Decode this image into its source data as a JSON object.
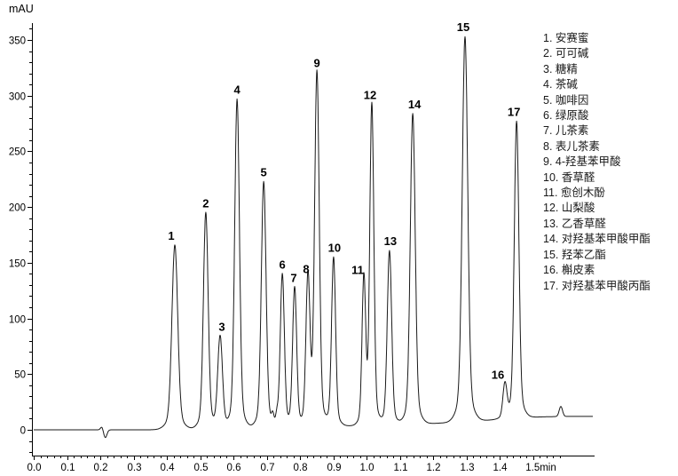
{
  "y_axis": {
    "unit_label": "mAU",
    "tick_values": [
      0,
      50,
      100,
      150,
      200,
      250,
      300,
      350
    ],
    "tick_labels": [
      "0",
      "50",
      "100",
      "150",
      "200",
      "250",
      "300",
      "350"
    ],
    "minor_step": 10
  },
  "x_axis": {
    "tick_values": [
      0,
      0.1,
      0.2,
      0.3,
      0.4,
      0.5,
      0.6,
      0.7,
      0.8,
      0.9,
      1.0,
      1.1,
      1.2,
      1.3,
      1.4,
      1.5
    ],
    "tick_labels": [
      "0.0",
      "0.1",
      "0.2",
      "0.3",
      "0.4",
      "0.5",
      "0.6",
      "0.7",
      "0.8",
      "0.9",
      "1.0",
      "1.1",
      "1.2",
      "1.3",
      "1.4",
      "1.5min"
    ],
    "minor_step": 0.02
  },
  "chart_data": {
    "type": "line",
    "title": "",
    "xlabel": "min",
    "ylabel": "mAU",
    "xlim": [
      0,
      1.68
    ],
    "ylim": [
      -22,
      364
    ],
    "grid": false,
    "legend_position": "right",
    "peaks": [
      {
        "id": 1,
        "name": "安赛蜜",
        "rt_min": 0.424,
        "apex_mAU": 166,
        "sigma_min": 0.0085,
        "label_dx": -4
      },
      {
        "id": 2,
        "name": "可可碱",
        "rt_min": 0.517,
        "apex_mAU": 195,
        "sigma_min": 0.0069,
        "label_dx": 0
      },
      {
        "id": 3,
        "name": "糖精",
        "rt_min": 0.56,
        "apex_mAU": 84,
        "sigma_min": 0.0069,
        "label_dx": 2
      },
      {
        "id": 4,
        "name": "茶碱",
        "rt_min": 0.611,
        "apex_mAU": 297,
        "sigma_min": 0.0069,
        "label_dx": 0
      },
      {
        "id": 5,
        "name": "咖啡因",
        "rt_min": 0.691,
        "apex_mAU": 223,
        "sigma_min": 0.0069,
        "label_dx": 0
      },
      {
        "id": 6,
        "name": "绿原酸",
        "rt_min": 0.747,
        "apex_mAU": 140,
        "sigma_min": 0.0059,
        "label_dx": 0
      },
      {
        "id": 7,
        "name": "儿茶素",
        "rt_min": 0.784,
        "apex_mAU": 128,
        "sigma_min": 0.0059,
        "label_dx": -1
      },
      {
        "id": 8,
        "name": "表儿茶素",
        "rt_min": 0.824,
        "apex_mAU": 136,
        "sigma_min": 0.0059,
        "label_dx": -2
      },
      {
        "id": 9,
        "name": "4-羟基苯甲酸",
        "rt_min": 0.851,
        "apex_mAU": 321,
        "sigma_min": 0.0067,
        "label_dx": 0
      },
      {
        "id": 10,
        "name": "香草醛",
        "rt_min": 0.901,
        "apex_mAU": 155,
        "sigma_min": 0.0059,
        "label_dx": 1
      },
      {
        "id": 11,
        "name": "愈创木酚",
        "rt_min": 0.992,
        "apex_mAU": 135,
        "sigma_min": 0.0053,
        "label_dx": -7
      },
      {
        "id": 12,
        "name": "山梨酸",
        "rt_min": 1.016,
        "apex_mAU": 292,
        "sigma_min": 0.0059,
        "label_dx": -2
      },
      {
        "id": 13,
        "name": "乙香草醛",
        "rt_min": 1.069,
        "apex_mAU": 161,
        "sigma_min": 0.0064,
        "label_dx": 1
      },
      {
        "id": 14,
        "name": "对羟基苯甲酸甲酯",
        "rt_min": 1.139,
        "apex_mAU": 284,
        "sigma_min": 0.0072,
        "label_dx": 2
      },
      {
        "id": 15,
        "name": "羟苯乙酯",
        "rt_min": 1.296,
        "apex_mAU": 353,
        "sigma_min": 0.008,
        "label_dx": -2
      },
      {
        "id": 16,
        "name": "槲皮素",
        "rt_min": 1.416,
        "apex_mAU": 41,
        "sigma_min": 0.0059,
        "label_dx": -8
      },
      {
        "id": 17,
        "name": "对羟基苯甲酸丙酯",
        "rt_min": 1.451,
        "apex_mAU": 277,
        "sigma_min": 0.0067,
        "label_dx": -3
      }
    ],
    "baseline_mAU": [
      [
        0,
        0
      ],
      [
        0.42,
        0
      ],
      [
        0.56,
        1
      ],
      [
        0.7,
        2
      ],
      [
        0.85,
        3
      ],
      [
        1.02,
        4
      ],
      [
        1.14,
        5
      ],
      [
        1.3,
        7
      ],
      [
        1.42,
        10
      ],
      [
        1.45,
        11
      ],
      [
        1.58,
        12
      ],
      [
        1.68,
        12
      ]
    ],
    "baseline_features": [
      {
        "t_min": 0.205,
        "height_mAU": 3,
        "sigma_min": 0.004
      },
      {
        "t_min": 0.215,
        "height_mAU": -7,
        "sigma_min": 0.005
      },
      {
        "t_min": 0.718,
        "height_mAU": 8,
        "sigma_min": 0.0035
      },
      {
        "t_min": 0.731,
        "height_mAU": 8,
        "sigma_min": 0.0035
      },
      {
        "t_min": 1.584,
        "height_mAU": 9,
        "sigma_min": 0.005
      }
    ]
  },
  "colors": {
    "trace": "#1a1a1a",
    "axis": "#000000",
    "text": "#000000",
    "background": "#ffffff"
  }
}
